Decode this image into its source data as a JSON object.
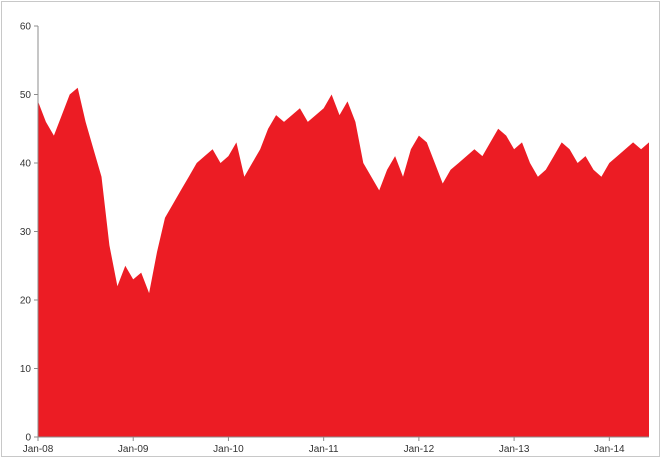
{
  "chart_data": {
    "type": "area",
    "title": "",
    "xlabel": "",
    "ylabel": "",
    "ylim": [
      0,
      60
    ],
    "yticks": [
      0,
      10,
      20,
      30,
      40,
      50,
      60
    ],
    "xlim": [
      "2008-01",
      "2014-06"
    ],
    "xtick_labels": [
      "Jan-08",
      "Jan-09",
      "Jan-10",
      "Jan-11",
      "Jan-12",
      "Jan-13",
      "Jan-14"
    ],
    "fill_color": "#ec1c24",
    "grid": false,
    "legend": "none",
    "x": [
      "2008-01",
      "2008-02",
      "2008-03",
      "2008-04",
      "2008-05",
      "2008-06",
      "2008-07",
      "2008-08",
      "2008-09",
      "2008-10",
      "2008-11",
      "2008-12",
      "2009-01",
      "2009-02",
      "2009-03",
      "2009-04",
      "2009-05",
      "2009-06",
      "2009-07",
      "2009-08",
      "2009-09",
      "2009-10",
      "2009-11",
      "2009-12",
      "2010-01",
      "2010-02",
      "2010-03",
      "2010-04",
      "2010-05",
      "2010-06",
      "2010-07",
      "2010-08",
      "2010-09",
      "2010-10",
      "2010-11",
      "2010-12",
      "2011-01",
      "2011-02",
      "2011-03",
      "2011-04",
      "2011-05",
      "2011-06",
      "2011-07",
      "2011-08",
      "2011-09",
      "2011-10",
      "2011-11",
      "2011-12",
      "2012-01",
      "2012-02",
      "2012-03",
      "2012-04",
      "2012-05",
      "2012-06",
      "2012-07",
      "2012-08",
      "2012-09",
      "2012-10",
      "2012-11",
      "2012-12",
      "2013-01",
      "2013-02",
      "2013-03",
      "2013-04",
      "2013-05",
      "2013-06",
      "2013-07",
      "2013-08",
      "2013-09",
      "2013-10",
      "2013-11",
      "2013-12",
      "2014-01",
      "2014-02",
      "2014-03",
      "2014-04",
      "2014-05",
      "2014-06"
    ],
    "values": [
      49,
      46,
      44,
      47,
      50,
      51,
      46,
      42,
      38,
      28,
      22,
      25,
      23,
      24,
      21,
      27,
      32,
      34,
      36,
      38,
      40,
      41,
      42,
      40,
      41,
      43,
      38,
      40,
      42,
      45,
      47,
      46,
      47,
      48,
      46,
      47,
      48,
      50,
      47,
      49,
      46,
      40,
      38,
      36,
      39,
      41,
      38,
      42,
      44,
      43,
      40,
      37,
      39,
      40,
      41,
      42,
      41,
      43,
      45,
      44,
      42,
      43,
      40,
      38,
      39,
      41,
      43,
      42,
      40,
      41,
      39,
      38,
      40,
      41,
      42,
      43,
      42,
      43
    ]
  }
}
